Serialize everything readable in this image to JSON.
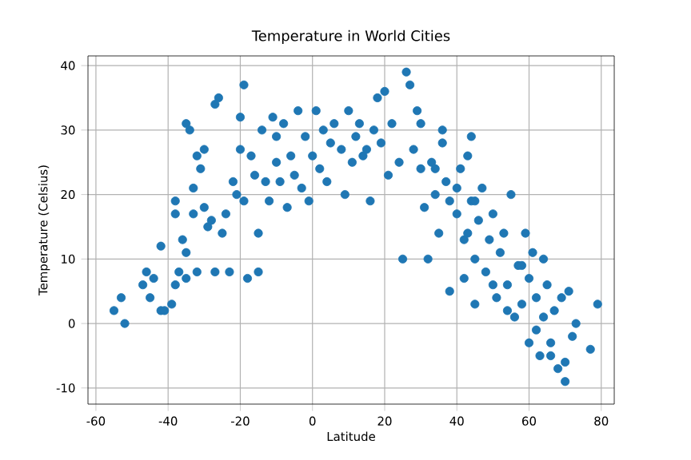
{
  "chart_data": {
    "type": "scatter",
    "title": "Temperature in World Cities",
    "xlabel": "Latitude",
    "ylabel": "Temperature (Celsius)",
    "xlim": [
      -62.2,
      83.6
    ],
    "ylim": [
      -12.5,
      41.5
    ],
    "xticks": [
      -60,
      -40,
      -20,
      0,
      20,
      40,
      60,
      80
    ],
    "yticks": [
      -10,
      0,
      10,
      20,
      30,
      40
    ],
    "grid": true,
    "marker": "circle",
    "series": [
      {
        "color": "#1f77b4",
        "x": [
          -55,
          -53,
          -52,
          -47,
          -46,
          -45,
          -44,
          -42,
          -41,
          -42,
          -39,
          -38,
          -38,
          -38,
          -37,
          -36,
          -35,
          -35,
          -35,
          -34,
          -33,
          -33,
          -32,
          -32,
          -31,
          -30,
          -30,
          -29,
          -28,
          -27,
          -27,
          -26,
          -25,
          -24,
          -23,
          -22,
          -21,
          -20,
          -20,
          -19,
          -19,
          -18,
          -17,
          -16,
          -15,
          -15,
          -14,
          -13,
          -12,
          -11,
          -10,
          -10,
          -9,
          -8,
          -7,
          -6,
          -5,
          -4,
          -3,
          -2,
          -1,
          0,
          1,
          2,
          3,
          4,
          5,
          6,
          8,
          9,
          10,
          11,
          12,
          13,
          14,
          15,
          16,
          17,
          18,
          19,
          20,
          21,
          22,
          24,
          25,
          26,
          27,
          28,
          29,
          30,
          31,
          32,
          33,
          34,
          35,
          36,
          37,
          38,
          38,
          40,
          41,
          42,
          42,
          43,
          44,
          44,
          45,
          45,
          46,
          47,
          48,
          49,
          50,
          51,
          52,
          53,
          54,
          55,
          56,
          57,
          58,
          59,
          60,
          60,
          61,
          62,
          63,
          64,
          65,
          66,
          67,
          68,
          69,
          70,
          71,
          72,
          73,
          77,
          79,
          70,
          62,
          64,
          34,
          36,
          43,
          50,
          54,
          58,
          66,
          45,
          40,
          30
        ],
        "values": [
          2,
          4,
          0,
          6,
          8,
          4,
          7,
          2,
          2,
          12,
          3,
          6,
          17,
          19,
          8,
          13,
          7,
          11,
          31,
          30,
          17,
          21,
          26,
          8,
          24,
          27,
          18,
          15,
          16,
          8,
          34,
          35,
          14,
          17,
          8,
          22,
          20,
          32,
          27,
          37,
          19,
          7,
          26,
          23,
          8,
          14,
          30,
          22,
          19,
          32,
          29,
          25,
          22,
          31,
          18,
          26,
          23,
          33,
          21,
          29,
          19,
          26,
          33,
          24,
          30,
          22,
          28,
          31,
          27,
          20,
          33,
          25,
          29,
          31,
          26,
          27,
          19,
          30,
          35,
          28,
          36,
          23,
          31,
          25,
          10,
          39,
          37,
          27,
          33,
          24,
          18,
          10,
          25,
          20,
          14,
          28,
          22,
          19,
          5,
          17,
          24,
          13,
          7,
          26,
          29,
          19,
          10,
          3,
          16,
          21,
          8,
          13,
          17,
          4,
          11,
          14,
          6,
          20,
          1,
          9,
          3,
          14,
          -3,
          7,
          11,
          4,
          -5,
          1,
          6,
          -3,
          2,
          -7,
          4,
          -9,
          5,
          -2,
          0,
          -4,
          3,
          -6,
          -1,
          10,
          24,
          30,
          14,
          6,
          2,
          9,
          -5,
          19,
          21,
          31
        ]
      }
    ]
  }
}
